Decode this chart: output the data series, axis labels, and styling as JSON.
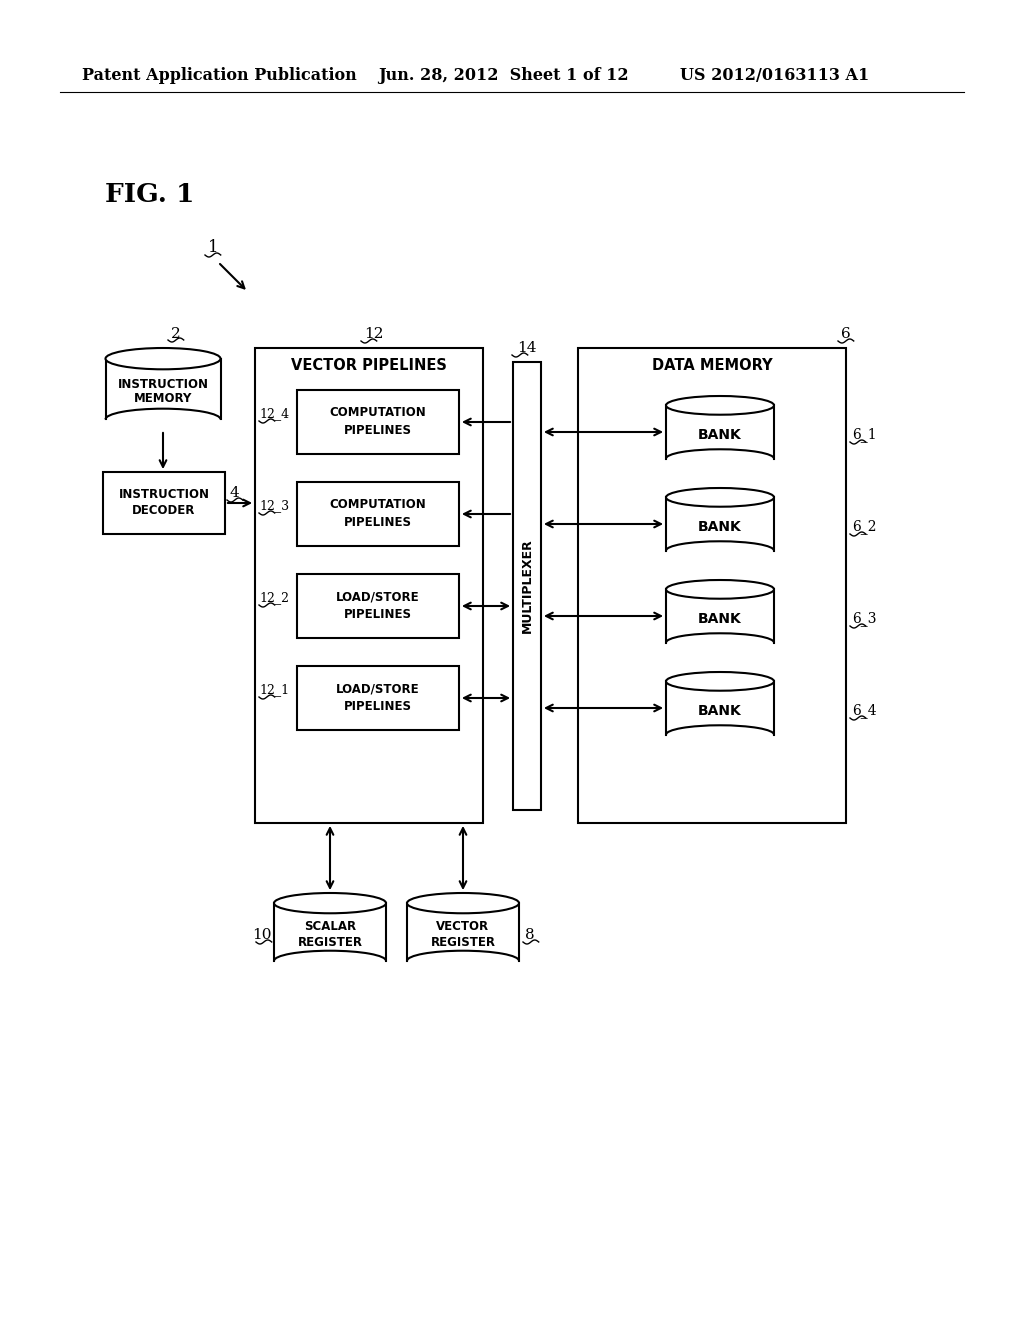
{
  "bg_color": "#ffffff",
  "header_text": "Patent Application Publication",
  "header_date": "Jun. 28, 2012  Sheet 1 of 12",
  "header_patent": "US 2012/0163113 A1",
  "fig_label": "FIG. 1",
  "component_label": "1",
  "instruction_memory_label": "2",
  "instruction_decoder_label": "4",
  "vector_pipelines_label": "12",
  "multiplexer_label": "14",
  "data_memory_label": "6",
  "scalar_register_label": "10",
  "vector_register_label": "8",
  "pipeline_labels": [
    "12_4",
    "12_3",
    "12_2",
    "12_1"
  ],
  "pipeline_texts": [
    [
      "COMPUTATION",
      "PIPELINES"
    ],
    [
      "COMPUTATION",
      "PIPELINES"
    ],
    [
      "LOAD/STORE",
      "PIPELINES"
    ],
    [
      "LOAD/STORE",
      "PIPELINES"
    ]
  ],
  "bank_labels": [
    "6_1",
    "6_2",
    "6_3",
    "6_4"
  ]
}
